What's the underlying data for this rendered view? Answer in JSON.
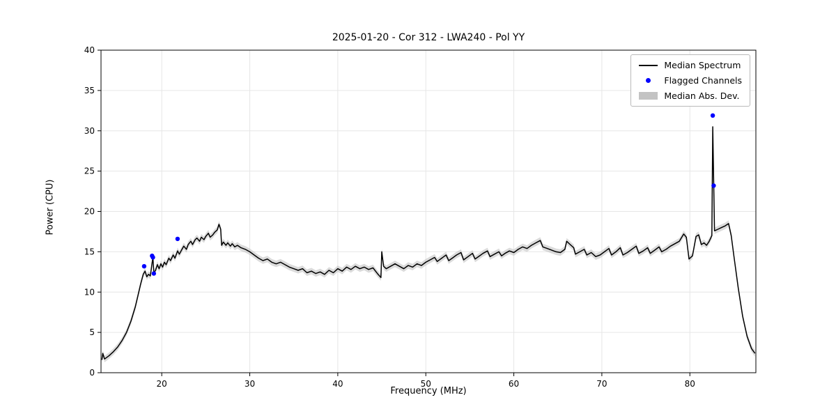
{
  "chart_data": {
    "type": "line",
    "title": "2025-01-20 - Cor 312 - LWA240 - Pol YY",
    "xlabel": "Frequency (MHz)",
    "ylabel": "Power (CPU)",
    "xlim": [
      13.1,
      87.5
    ],
    "ylim": [
      0,
      40
    ],
    "x_ticks": [
      20,
      30,
      40,
      50,
      60,
      70,
      80
    ],
    "y_ticks": [
      0,
      5,
      10,
      15,
      20,
      25,
      30,
      35,
      40
    ],
    "grid": true,
    "legend_position": "upper right",
    "colors": {
      "line": "#000000",
      "flagged": "#0000ff",
      "band": "#bdbdbd",
      "grid": "#e6e6e6"
    },
    "legend": {
      "items": [
        {
          "label": "Median Spectrum",
          "type": "line",
          "color": "#000000"
        },
        {
          "label": "Flagged Channels",
          "type": "dot",
          "color": "#0000ff"
        },
        {
          "label": "Median Abs. Dev.",
          "type": "band",
          "color": "#c3c3c3"
        }
      ]
    },
    "mad": 0.4,
    "series": [
      {
        "name": "Median Spectrum",
        "points": [
          [
            13.2,
            1.6
          ],
          [
            13.3,
            2.4
          ],
          [
            13.5,
            1.7
          ],
          [
            14,
            2.1
          ],
          [
            14.5,
            2.6
          ],
          [
            15,
            3.2
          ],
          [
            15.5,
            4.0
          ],
          [
            16,
            5.0
          ],
          [
            16.5,
            6.4
          ],
          [
            17,
            8.2
          ],
          [
            17.3,
            9.6
          ],
          [
            17.6,
            11.0
          ],
          [
            17.9,
            12.2
          ],
          [
            18.1,
            12.6
          ],
          [
            18.3,
            11.9
          ],
          [
            18.5,
            12.2
          ],
          [
            18.7,
            12.0
          ],
          [
            18.9,
            13.6
          ],
          [
            19.0,
            14.3
          ],
          [
            19.1,
            12.4
          ],
          [
            19.3,
            12.7
          ],
          [
            19.5,
            13.4
          ],
          [
            19.7,
            12.9
          ],
          [
            19.9,
            13.5
          ],
          [
            20.1,
            13.1
          ],
          [
            20.3,
            13.7
          ],
          [
            20.5,
            13.4
          ],
          [
            20.8,
            14.2
          ],
          [
            21.0,
            13.9
          ],
          [
            21.3,
            14.6
          ],
          [
            21.5,
            14.2
          ],
          [
            21.8,
            15.1
          ],
          [
            22.0,
            14.7
          ],
          [
            22.3,
            15.3
          ],
          [
            22.5,
            15.7
          ],
          [
            22.8,
            15.3
          ],
          [
            23.0,
            15.9
          ],
          [
            23.3,
            16.3
          ],
          [
            23.5,
            15.9
          ],
          [
            23.8,
            16.5
          ],
          [
            24.0,
            16.7
          ],
          [
            24.3,
            16.3
          ],
          [
            24.5,
            16.8
          ],
          [
            24.8,
            16.5
          ],
          [
            25.0,
            16.9
          ],
          [
            25.3,
            17.3
          ],
          [
            25.5,
            16.8
          ],
          [
            25.8,
            17.1
          ],
          [
            26.0,
            17.4
          ],
          [
            26.3,
            17.7
          ],
          [
            26.5,
            18.4
          ],
          [
            26.7,
            17.8
          ],
          [
            26.8,
            15.8
          ],
          [
            27.0,
            16.2
          ],
          [
            27.3,
            15.8
          ],
          [
            27.5,
            16.1
          ],
          [
            27.8,
            15.7
          ],
          [
            28.0,
            16.0
          ],
          [
            28.3,
            15.6
          ],
          [
            28.6,
            15.8
          ],
          [
            29.0,
            15.5
          ],
          [
            29.5,
            15.3
          ],
          [
            30.0,
            15.0
          ],
          [
            30.5,
            14.6
          ],
          [
            31.0,
            14.2
          ],
          [
            31.5,
            13.9
          ],
          [
            32.0,
            14.1
          ],
          [
            32.5,
            13.7
          ],
          [
            33.0,
            13.5
          ],
          [
            33.5,
            13.7
          ],
          [
            34.0,
            13.4
          ],
          [
            34.5,
            13.1
          ],
          [
            35.0,
            12.9
          ],
          [
            35.5,
            12.7
          ],
          [
            36.0,
            12.9
          ],
          [
            36.5,
            12.4
          ],
          [
            37.0,
            12.6
          ],
          [
            37.5,
            12.3
          ],
          [
            38.0,
            12.5
          ],
          [
            38.5,
            12.2
          ],
          [
            39.0,
            12.7
          ],
          [
            39.5,
            12.4
          ],
          [
            40.0,
            12.9
          ],
          [
            40.5,
            12.6
          ],
          [
            41.0,
            13.1
          ],
          [
            41.5,
            12.8
          ],
          [
            42.0,
            13.2
          ],
          [
            42.5,
            12.9
          ],
          [
            43.0,
            13.1
          ],
          [
            43.5,
            12.8
          ],
          [
            44.0,
            13.0
          ],
          [
            44.5,
            12.3
          ],
          [
            44.9,
            11.8
          ],
          [
            45.0,
            15.0
          ],
          [
            45.2,
            13.2
          ],
          [
            45.5,
            12.9
          ],
          [
            46.0,
            13.2
          ],
          [
            46.5,
            13.5
          ],
          [
            47.0,
            13.2
          ],
          [
            47.5,
            12.9
          ],
          [
            48.0,
            13.3
          ],
          [
            48.5,
            13.1
          ],
          [
            49.0,
            13.5
          ],
          [
            49.5,
            13.3
          ],
          [
            50.0,
            13.7
          ],
          [
            50.5,
            14.0
          ],
          [
            51.0,
            14.3
          ],
          [
            51.3,
            13.8
          ],
          [
            51.8,
            14.2
          ],
          [
            52.3,
            14.6
          ],
          [
            52.6,
            13.9
          ],
          [
            53.0,
            14.2
          ],
          [
            53.5,
            14.6
          ],
          [
            54.0,
            14.9
          ],
          [
            54.3,
            14.0
          ],
          [
            54.8,
            14.4
          ],
          [
            55.3,
            14.8
          ],
          [
            55.6,
            14.1
          ],
          [
            56.0,
            14.4
          ],
          [
            56.5,
            14.8
          ],
          [
            57.0,
            15.1
          ],
          [
            57.3,
            14.4
          ],
          [
            57.8,
            14.7
          ],
          [
            58.3,
            15.0
          ],
          [
            58.6,
            14.5
          ],
          [
            59.0,
            14.8
          ],
          [
            59.5,
            15.1
          ],
          [
            60.0,
            14.9
          ],
          [
            60.5,
            15.3
          ],
          [
            61.0,
            15.6
          ],
          [
            61.5,
            15.4
          ],
          [
            62.0,
            15.8
          ],
          [
            62.5,
            16.1
          ],
          [
            63.0,
            16.4
          ],
          [
            63.3,
            15.6
          ],
          [
            63.8,
            15.4
          ],
          [
            64.3,
            15.2
          ],
          [
            64.8,
            15.0
          ],
          [
            65.3,
            14.9
          ],
          [
            65.8,
            15.3
          ],
          [
            66.0,
            16.3
          ],
          [
            66.4,
            15.9
          ],
          [
            66.8,
            15.5
          ],
          [
            67.0,
            14.7
          ],
          [
            67.5,
            15.0
          ],
          [
            68.0,
            15.3
          ],
          [
            68.3,
            14.6
          ],
          [
            68.8,
            14.9
          ],
          [
            69.3,
            14.4
          ],
          [
            69.8,
            14.6
          ],
          [
            70.3,
            15.0
          ],
          [
            70.8,
            15.4
          ],
          [
            71.1,
            14.6
          ],
          [
            71.6,
            15.0
          ],
          [
            72.1,
            15.5
          ],
          [
            72.4,
            14.6
          ],
          [
            72.9,
            14.9
          ],
          [
            73.4,
            15.3
          ],
          [
            73.9,
            15.7
          ],
          [
            74.2,
            14.8
          ],
          [
            74.7,
            15.1
          ],
          [
            75.2,
            15.5
          ],
          [
            75.5,
            14.8
          ],
          [
            76.0,
            15.2
          ],
          [
            76.5,
            15.6
          ],
          [
            76.8,
            15.0
          ],
          [
            77.3,
            15.3
          ],
          [
            77.8,
            15.7
          ],
          [
            78.3,
            16.0
          ],
          [
            78.8,
            16.3
          ],
          [
            79.3,
            17.2
          ],
          [
            79.6,
            16.8
          ],
          [
            79.9,
            14.1
          ],
          [
            80.3,
            14.5
          ],
          [
            80.7,
            16.9
          ],
          [
            81.0,
            17.1
          ],
          [
            81.3,
            15.9
          ],
          [
            81.6,
            16.1
          ],
          [
            81.9,
            15.8
          ],
          [
            82.2,
            16.3
          ],
          [
            82.5,
            17.0
          ],
          [
            82.6,
            30.5
          ],
          [
            82.8,
            17.6
          ],
          [
            83.2,
            17.8
          ],
          [
            83.6,
            18.0
          ],
          [
            84.0,
            18.2
          ],
          [
            84.4,
            18.5
          ],
          [
            84.7,
            17.0
          ],
          [
            85.0,
            14.5
          ],
          [
            85.5,
            10.5
          ],
          [
            86.0,
            7.0
          ],
          [
            86.5,
            4.5
          ],
          [
            87.0,
            3.0
          ],
          [
            87.4,
            2.4
          ]
        ]
      }
    ],
    "flagged_channels": [
      [
        18.0,
        13.2
      ],
      [
        18.9,
        14.5
      ],
      [
        19.0,
        14.3
      ],
      [
        19.1,
        12.3
      ],
      [
        21.8,
        16.6
      ],
      [
        82.6,
        31.9
      ],
      [
        82.7,
        23.2
      ]
    ]
  }
}
